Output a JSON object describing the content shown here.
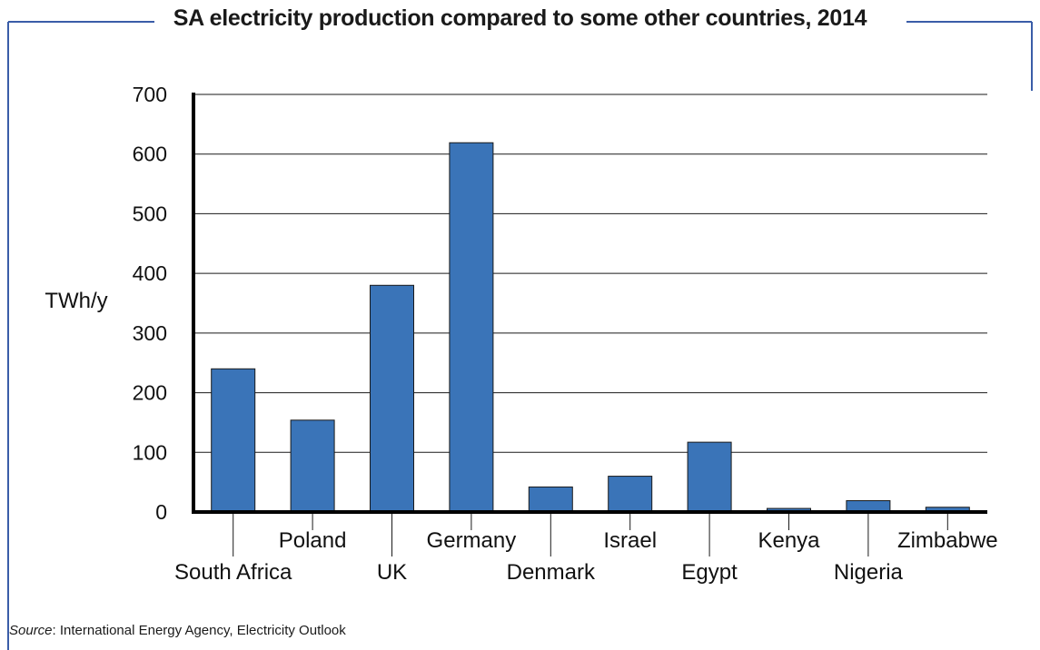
{
  "frame_color": "#3a5da8",
  "bar_color": "#3a74b8",
  "chart_data": {
    "type": "bar",
    "title": "SA electricity production compared to some other countries, 2014",
    "ylabel": "TWh/y",
    "xlabel": "",
    "ylim": [
      0,
      700
    ],
    "yticks": [
      0,
      100,
      200,
      300,
      400,
      500,
      600,
      700
    ],
    "grid": true,
    "categories": [
      "South Africa",
      "Poland",
      "UK",
      "Germany",
      "Denmark",
      "Israel",
      "Egypt",
      "Kenya",
      "Nigeria",
      "Zimbabwe"
    ],
    "label_level": [
      "low",
      "high",
      "low",
      "high",
      "low",
      "high",
      "low",
      "high",
      "low",
      "high"
    ],
    "values": [
      240,
      154,
      380,
      619,
      42,
      60,
      117,
      6,
      19,
      8
    ]
  },
  "source": {
    "label": "Source",
    "text": ": International Energy Agency, Electricity Outlook"
  }
}
